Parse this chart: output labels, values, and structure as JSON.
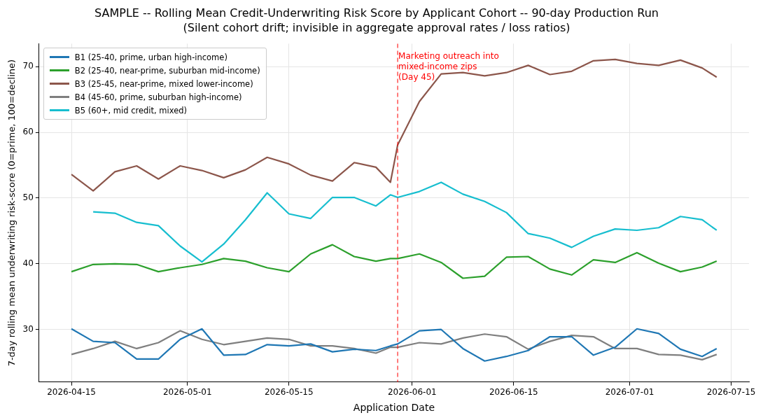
{
  "chart_data": {
    "type": "line",
    "title": "SAMPLE -- Rolling Mean Credit-Underwriting Risk Score by Applicant Cohort -- 90-day Production Run",
    "subtitle": "(Silent cohort drift; invisible in aggregate approval rates / loss ratios)",
    "xlabel": "Application Date",
    "ylabel": "7-day rolling mean underwriting risk-score (0=prime, 100=decline)",
    "x": [
      "2026-04-15",
      "2026-04-18",
      "2026-04-21",
      "2026-04-24",
      "2026-04-27",
      "2026-04-30",
      "2026-05-03",
      "2026-05-06",
      "2026-05-09",
      "2026-05-12",
      "2026-05-15",
      "2026-05-18",
      "2026-05-21",
      "2026-05-24",
      "2026-05-27",
      "2026-05-29",
      "2026-05-30",
      "2026-06-02",
      "2026-06-05",
      "2026-06-08",
      "2026-06-11",
      "2026-06-14",
      "2026-06-17",
      "2026-06-20",
      "2026-06-23",
      "2026-06-26",
      "2026-06-29",
      "2026-07-02",
      "2026-07-05",
      "2026-07-08",
      "2026-07-11",
      "2026-07-13"
    ],
    "series": [
      {
        "name": "B1 (25-40, prime, urban high-income)",
        "color": "#1f77b4",
        "values": [
          30.1,
          28.2,
          28.0,
          25.5,
          25.5,
          28.5,
          30.1,
          26.1,
          26.2,
          27.7,
          27.5,
          27.8,
          26.6,
          27.0,
          26.8,
          27.5,
          27.8,
          29.8,
          30.0,
          27.1,
          25.2,
          25.9,
          26.8,
          28.9,
          28.9,
          26.1,
          27.3,
          30.1,
          29.4,
          27.0,
          25.9,
          27.1
        ]
      },
      {
        "name": "B2 (25-40, near-prime, suburban mid-income)",
        "color": "#2ca02c",
        "values": [
          38.8,
          39.9,
          40.0,
          39.9,
          38.8,
          39.4,
          39.9,
          40.8,
          40.4,
          39.4,
          38.8,
          41.5,
          42.9,
          41.1,
          40.4,
          40.8,
          40.8,
          41.5,
          40.2,
          37.8,
          38.1,
          41.0,
          41.1,
          39.2,
          38.3,
          40.6,
          40.2,
          41.7,
          40.1,
          38.8,
          39.5,
          40.4
        ]
      },
      {
        "name": "B3 (25-45, near-prime, mixed lower-income)",
        "color": "#8c564b",
        "values": [
          53.6,
          51.1,
          54.0,
          54.9,
          52.9,
          54.9,
          54.2,
          53.1,
          54.3,
          56.2,
          55.2,
          53.5,
          52.6,
          55.4,
          54.7,
          52.4,
          58.1,
          64.7,
          68.9,
          69.1,
          68.6,
          69.1,
          70.2,
          68.8,
          69.3,
          70.9,
          71.1,
          70.5,
          70.2,
          71.0,
          69.8,
          68.4
        ]
      },
      {
        "name": "B4 (45-60, prime, suburban high-income)",
        "color": "#7f7f7f",
        "values": [
          26.2,
          27.1,
          28.2,
          27.1,
          28.0,
          29.8,
          28.5,
          27.7,
          28.2,
          28.7,
          28.5,
          27.5,
          27.5,
          27.1,
          26.4,
          27.3,
          27.3,
          28.0,
          27.8,
          28.7,
          29.3,
          28.9,
          27.0,
          28.2,
          29.1,
          28.9,
          27.1,
          27.1,
          26.2,
          26.1,
          25.4,
          26.2
        ]
      },
      {
        "name": "B5 (60+, mid credit, mixed)",
        "color": "#17becf",
        "values": [
          null,
          47.9,
          47.7,
          46.3,
          45.8,
          42.7,
          40.3,
          43.0,
          46.7,
          50.8,
          47.6,
          46.9,
          50.1,
          50.1,
          48.8,
          50.5,
          50.1,
          51.0,
          52.4,
          50.6,
          49.5,
          47.8,
          44.6,
          43.9,
          42.5,
          44.2,
          45.3,
          45.1,
          45.5,
          47.2,
          46.7,
          45.1
        ]
      }
    ],
    "xlim": [
      "2026-04-10T13:00",
      "2026-07-17T11:00"
    ],
    "xticks": [
      "2026-04-15",
      "2026-05-01",
      "2026-05-15",
      "2026-06-01",
      "2026-06-15",
      "2026-07-01",
      "2026-07-15"
    ],
    "ylim": [
      22,
      73.5
    ],
    "yticks": [
      30,
      40,
      50,
      60,
      70
    ],
    "ref_lines": [
      {
        "axis": "x",
        "value": "2026-05-30",
        "label": "Marketing outreach into\nmixed-income zips\n(Day 45)",
        "color": "#ff0000",
        "line_style": "dashed"
      }
    ],
    "grid": true,
    "legend": "top left",
    "marker": "none",
    "line_style": "solid"
  }
}
